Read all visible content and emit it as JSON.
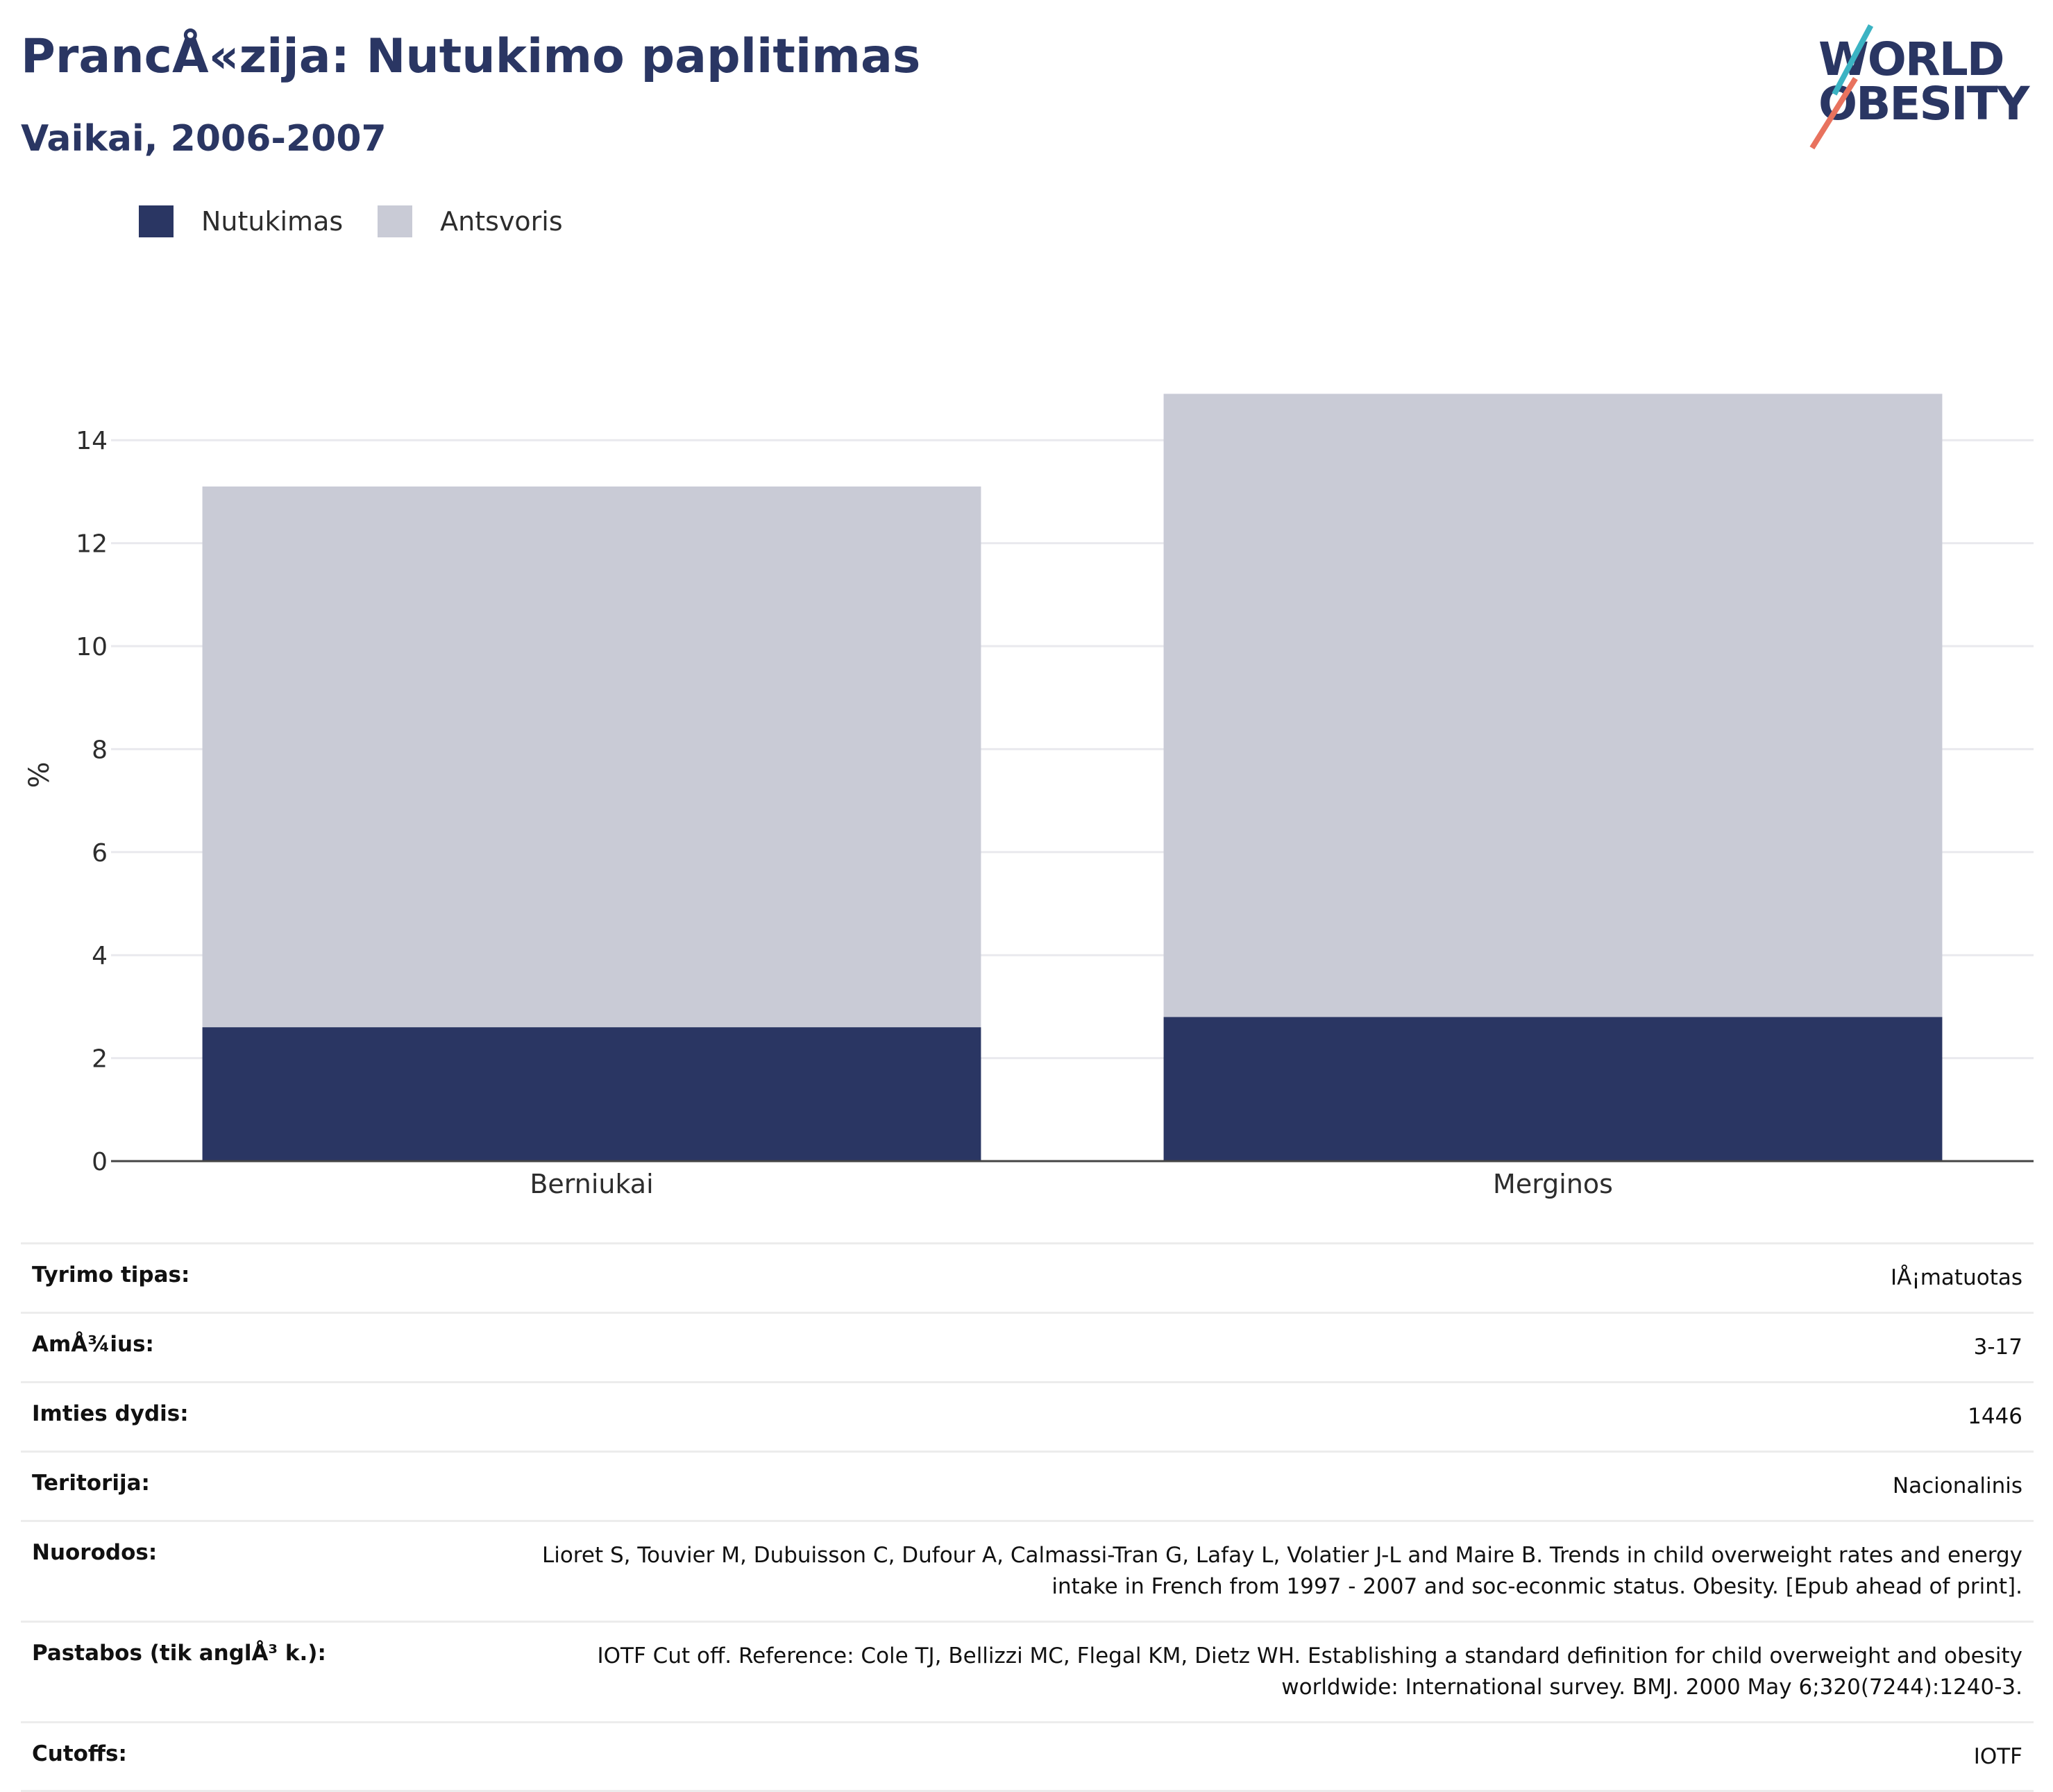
{
  "header": {
    "title": "PrancÅ«zija: Nutukimo paplitimas",
    "subtitle": "Vaikai, 2006-2007"
  },
  "logo": {
    "line1": "WORLD",
    "line2": "OBESITY"
  },
  "colors": {
    "brand": "#2a3663",
    "nutukimas": "#2a3663",
    "antsvoris": "#c9cbd6",
    "logo_teal": "#3bb3c3",
    "logo_coral": "#e8725e"
  },
  "chart_data": {
    "type": "bar",
    "stacked": true,
    "categories": [
      "Berniukai",
      "Merginos"
    ],
    "series": [
      {
        "name": "Nutukimas",
        "values": [
          2.6,
          2.8
        ]
      },
      {
        "name": "Antsvoris",
        "values": [
          10.5,
          12.1
        ]
      }
    ],
    "ylabel": "%",
    "xlabel": "",
    "ylim": [
      0,
      15
    ],
    "yticks": [
      0,
      2,
      4,
      6,
      8,
      10,
      12,
      14
    ],
    "grid": true,
    "legend_position": "top-left"
  },
  "info": [
    {
      "key": "Tyrimo tipas:",
      "value": "IÅ¡matuotas"
    },
    {
      "key": "AmÅ¾ius:",
      "value": "3-17"
    },
    {
      "key": "Imties dydis:",
      "value": "1446"
    },
    {
      "key": "Teritorija:",
      "value": "Nacionalinis"
    },
    {
      "key": "Nuorodos:",
      "value": "Lioret S, Touvier M, Dubuisson C, Dufour A, Calmassi-Tran G, Lafay L, Volatier J-L and Maire B. Trends in child overweight rates and energy intake in French from 1997 - 2007 and soc-econmic status. Obesity. [Epub ahead of print]."
    },
    {
      "key": "Pastabos (tik anglÅ³ k.):",
      "value": "IOTF Cut off. Reference: Cole TJ, Bellizzi MC, Flegal KM, Dietz WH. Establishing a standard definition for child overweight and obesity worldwide: International survey. BMJ. 2000 May 6;320(7244):1240-3."
    },
    {
      "key": "Cutoffs:",
      "value": "IOTF"
    }
  ]
}
